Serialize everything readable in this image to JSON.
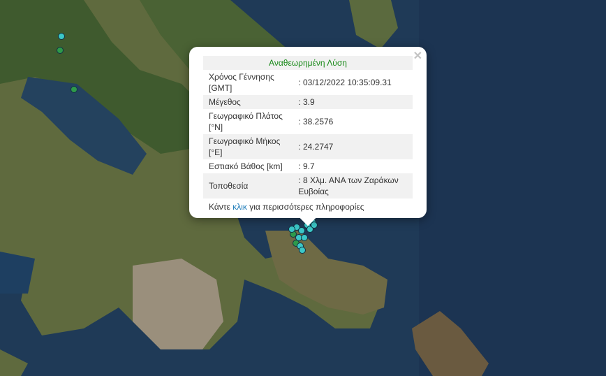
{
  "popup": {
    "title": "Αναθεωρημένη Λύση",
    "close_icon": "close-icon",
    "rows": [
      {
        "label": "Χρόνος Γέννησης [GMT]",
        "value": ": 03/12/2022 10:35:09.31"
      },
      {
        "label": "Μέγεθος",
        "value": ": 3.9"
      },
      {
        "label": "Γεωγραφικό Πλάτος [°N]",
        "value": ": 38.2576"
      },
      {
        "label": "Γεωγραφικό Μήκος [°E]",
        "value": ": 24.2747"
      },
      {
        "label": "Εστιακό Βάθος [km]",
        "value": ": 9.7"
      },
      {
        "label": "Τοποθεσία",
        "value": ": 8 Χλμ. ΑΝΑ των Ζαράκων Ευβοίας"
      }
    ],
    "footer_pre": "Κάντε ",
    "footer_link": "κλικ",
    "footer_post": " για περισσότερες πληροφορίες"
  },
  "colors": {
    "sea": "#1f3a57",
    "marker_recent": "#3cc8c8",
    "marker_old": "#2e9a4a",
    "title_green": "#1a8a1a",
    "link": "#1a7ab8"
  }
}
